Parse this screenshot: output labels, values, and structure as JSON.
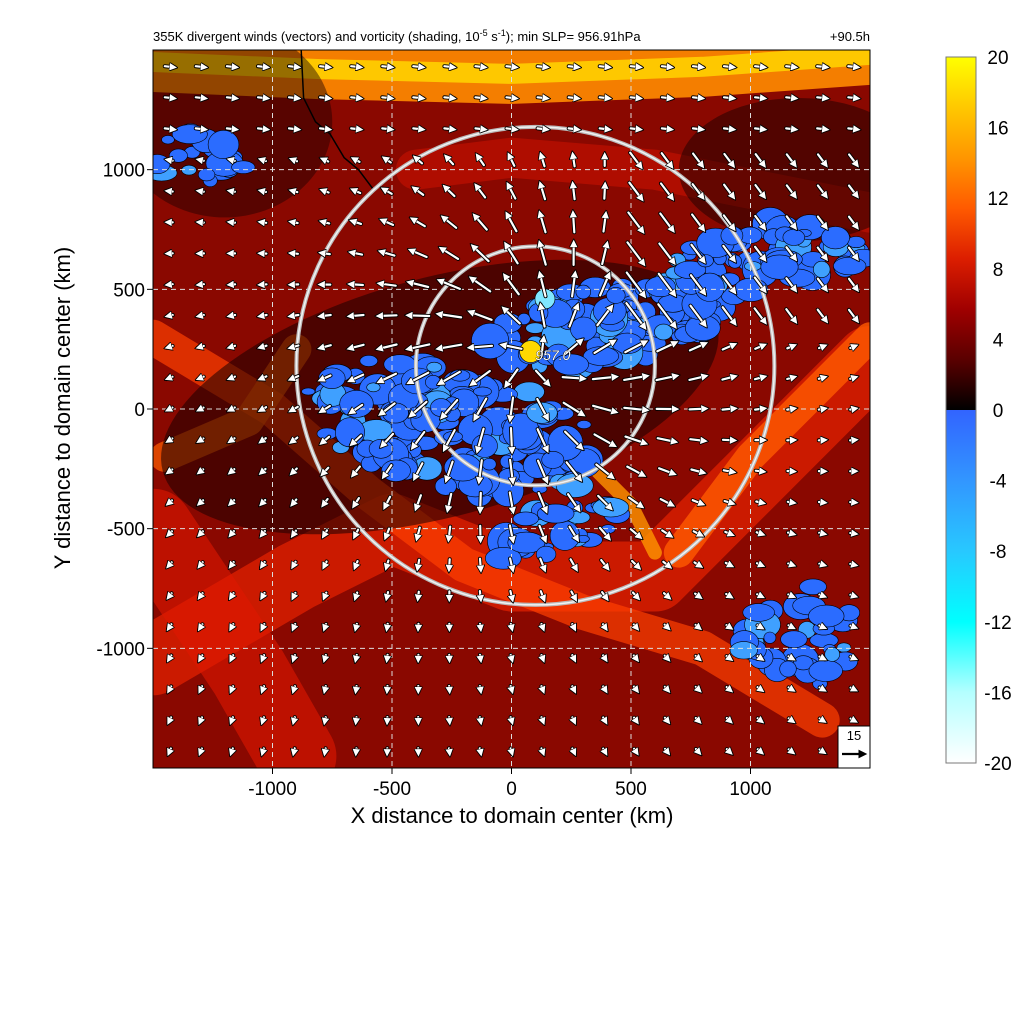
{
  "chart_data": {
    "type": "heatmap",
    "title_parts": {
      "before": "355K divergent winds (vectors) and vorticity (shading, 10",
      "exp1": "-5",
      "mid": " s",
      "exp2": "-1",
      "after": "); min SLP= 956.91hPa"
    },
    "time_label": "+90.5h",
    "xlabel": "X distance to domain center (km)",
    "ylabel": "Y distance to domain center (km)",
    "xlim": [
      -1500,
      1500
    ],
    "ylim": [
      -1500,
      1500
    ],
    "xticks": [
      -1000,
      -500,
      0,
      500,
      1000
    ],
    "yticks": [
      -1000,
      -500,
      0,
      500,
      1000
    ],
    "grid": true,
    "colorbar": {
      "ticks": [
        20,
        16,
        12,
        8,
        4,
        0,
        -4,
        -8,
        -12,
        -16,
        -20
      ],
      "range": [
        -20,
        20
      ],
      "positive_colors": [
        "#000000",
        "#5a0000",
        "#a00000",
        "#dc1e00",
        "#ff5a00",
        "#ff9600",
        "#ffc800",
        "#ffff00"
      ],
      "negative_colors": [
        "#3264ff",
        "#3296ff",
        "#28c8ff",
        "#00ffff",
        "#b4ffff",
        "#ffffff"
      ]
    },
    "center_annotation": {
      "text": "957.0",
      "x": 100,
      "y": 180
    },
    "rings": [
      {
        "cx": 100,
        "cy": 180,
        "r": 500
      },
      {
        "cx": 100,
        "cy": 180,
        "r": 1000
      }
    ],
    "reference_vector": {
      "value": "15",
      "label": "15"
    },
    "vectors": {
      "spacing_km": 130,
      "divergence_center": [
        100,
        200
      ]
    }
  }
}
